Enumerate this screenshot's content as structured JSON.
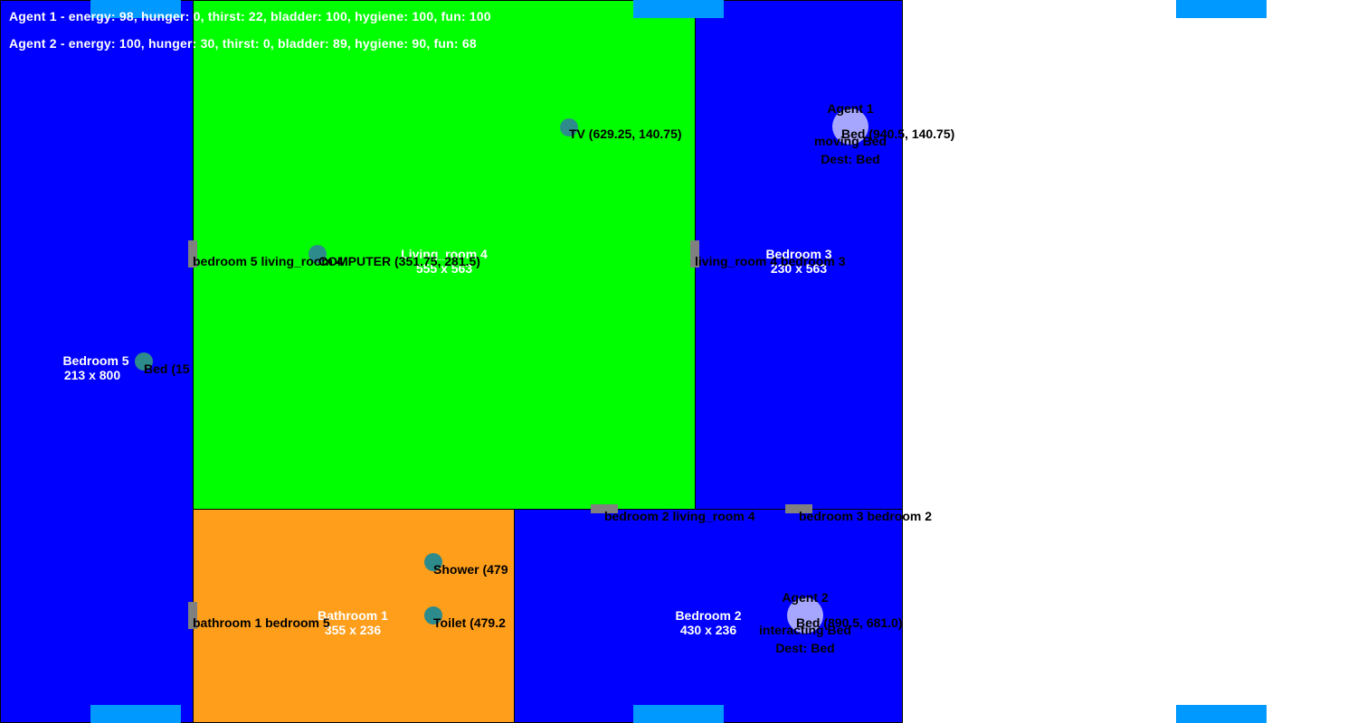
{
  "colors": {
    "bedroom": "#0000ff",
    "living_room": "#00ff00",
    "bathroom": "#ff9e1a",
    "window": "#0099ff",
    "door": "#808080",
    "object": "#2e8b8b",
    "agent": "#a6a6ff",
    "background": "#ffffff"
  },
  "hud": {
    "agent1_status": "Agent 1 - energy: 98, hunger: 0, thirst: 22, bladder: 100, hygiene: 100, fun: 100",
    "agent2_status": "Agent 2 - energy: 100, hunger: 30, thirst: 0, bladder: 89, hygiene: 90, fun: 68"
  },
  "rooms": {
    "bedroom5": {
      "name": "Bedroom 5",
      "size": "213 x 800"
    },
    "living_room4": {
      "name": "Living_room 4",
      "size": "555 x 563"
    },
    "bedroom3": {
      "name": "Bedroom 3",
      "size": "230 x 563"
    },
    "bathroom1": {
      "name": "Bathroom 1",
      "size": "355 x 236"
    },
    "bedroom2": {
      "name": "Bedroom 2",
      "size": "430 x 236"
    }
  },
  "objects": {
    "tv": "TV (629.25, 140.75)",
    "computer": "COMPUTER (351.75, 281.5)",
    "bed5": "Bed (15",
    "shower": "Shower (479",
    "toilet": "Toilet (479.2",
    "bed3": "Bed (940.5, 140.75)",
    "bed2": "Bed (890.5, 681.0)"
  },
  "doors": {
    "bedroom5_living": "bedroom 5 living_room 4",
    "living_bedroom3": "living_room 4 bedroom 3",
    "bedroom2_living": "bedroom 2 living_room 4",
    "bedroom3_bedroom2": "bedroom 3 bedroom 2",
    "bathroom1_bedroom5": "bathroom 1 bedroom 5"
  },
  "agents": {
    "agent1": {
      "name": "Agent 1",
      "action": "moving Bed",
      "dest": "Dest: Bed"
    },
    "agent2": {
      "name": "Agent 2",
      "action": "interacting Bed",
      "dest": "Dest: Bed"
    }
  }
}
